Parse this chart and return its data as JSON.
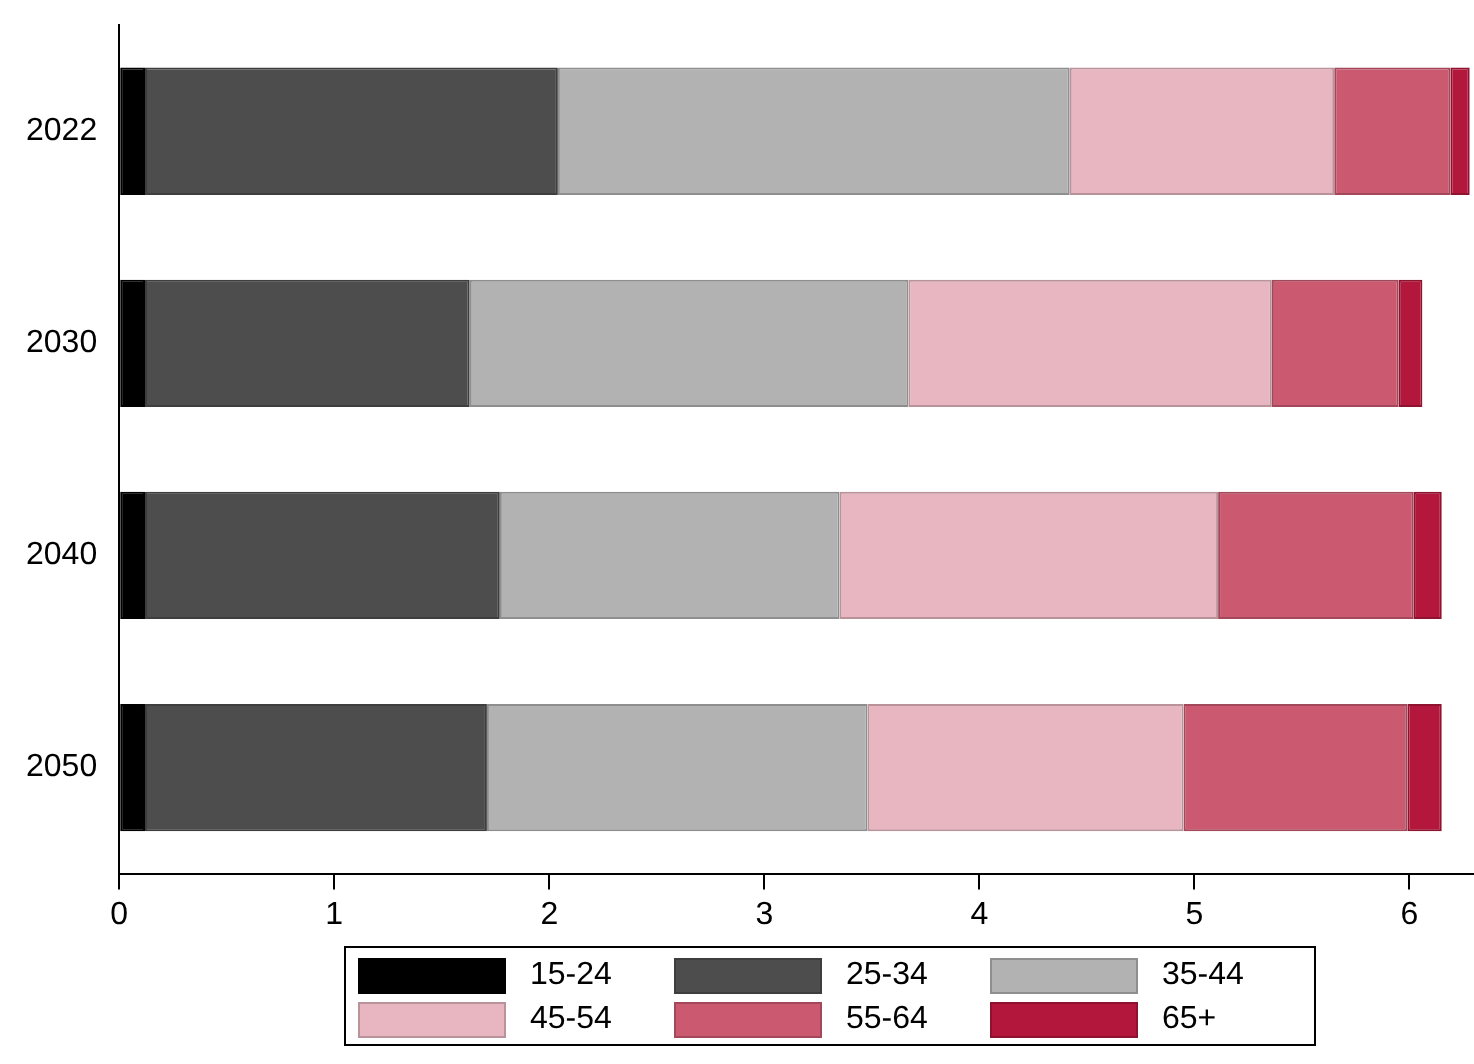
{
  "chart_data": {
    "type": "bar",
    "orientation": "horizontal",
    "stacked": true,
    "categories": [
      "2022",
      "2030",
      "2040",
      "2050"
    ],
    "series": [
      {
        "name": "15-24",
        "color": "#000000",
        "values": [
          0.12,
          0.12,
          0.12,
          0.12
        ]
      },
      {
        "name": "25-34",
        "color": "#4d4d4d",
        "values": [
          1.92,
          1.51,
          1.65,
          1.59
        ]
      },
      {
        "name": "35-44",
        "color": "#b2b2b2",
        "values": [
          2.38,
          2.04,
          1.58,
          1.77
        ]
      },
      {
        "name": "45-54",
        "color": "#e8b6c1",
        "values": [
          1.23,
          1.69,
          1.76,
          1.47
        ]
      },
      {
        "name": "55-64",
        "color": "#cb5a71",
        "values": [
          0.54,
          0.59,
          0.91,
          1.04
        ]
      },
      {
        "name": "65+",
        "color": "#b3173b",
        "values": [
          0.09,
          0.11,
          0.13,
          0.16
        ]
      }
    ],
    "xlim": [
      0,
      6.3
    ],
    "xticks": [
      0,
      1,
      2,
      3,
      4,
      5,
      6
    ],
    "grid": false,
    "legend": "bottom"
  }
}
